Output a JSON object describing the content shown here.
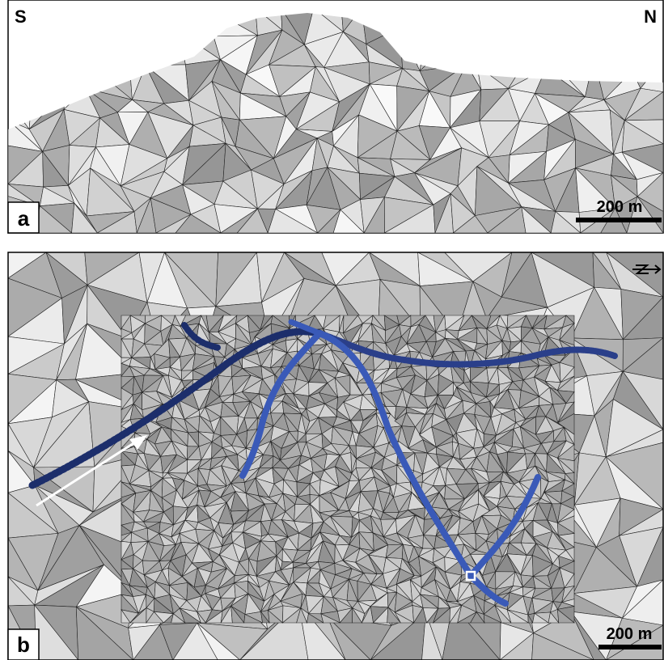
{
  "panel_a": {
    "label": "a",
    "left_direction": "S",
    "right_direction": "N",
    "scale_bar": "200 m"
  },
  "panel_b": {
    "label": "b",
    "scale_bar": "200 m"
  }
}
